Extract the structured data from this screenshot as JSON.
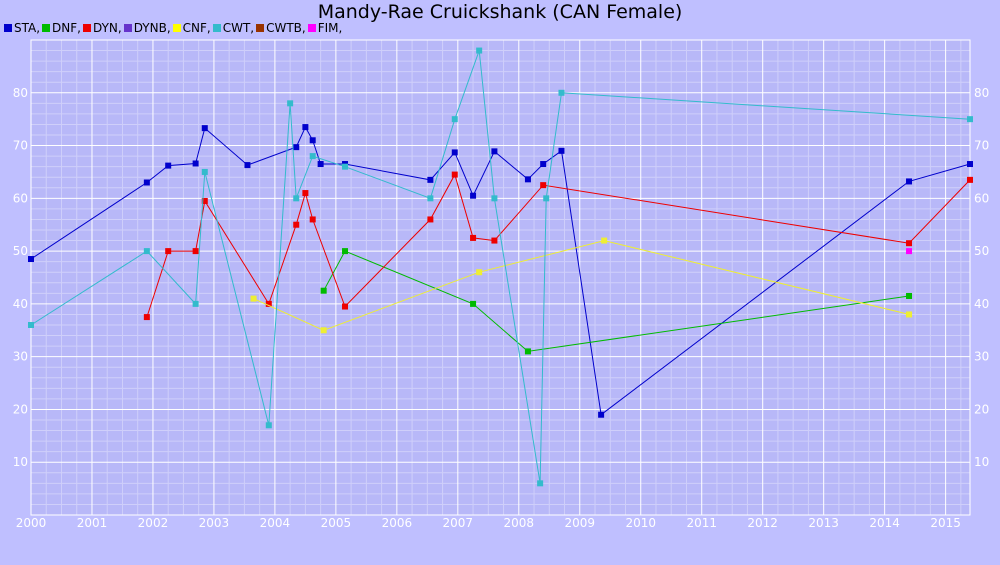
{
  "chart_data": {
    "type": "line",
    "title": "Mandy-Rae Cruickshank (CAN Female)",
    "xlim": [
      2000,
      2015.4
    ],
    "ylim": [
      0,
      90
    ],
    "x_ticks": [
      "2000",
      "2001",
      "2002",
      "2003",
      "2004",
      "2005",
      "2006",
      "2007",
      "2008",
      "2009",
      "2010",
      "2011",
      "2012",
      "2013",
      "2014",
      "2015"
    ],
    "y_ticks": [
      "10",
      "20",
      "30",
      "40",
      "50",
      "60",
      "70",
      "80"
    ],
    "grid": true,
    "legend_position": "top-left",
    "series": [
      {
        "name": "STA",
        "color": "#0000cc",
        "legend_color": "#0000cc",
        "points": [
          [
            2000.0,
            48.5
          ],
          [
            2001.9,
            63
          ],
          [
            2002.25,
            66.2
          ],
          [
            2002.7,
            66.6
          ],
          [
            2002.85,
            73.3
          ],
          [
            2003.55,
            66.3
          ],
          [
            2004.35,
            69.7
          ],
          [
            2004.5,
            73.5
          ],
          [
            2004.62,
            71
          ],
          [
            2004.75,
            66.5
          ],
          [
            2005.15,
            66.5
          ],
          [
            2006.55,
            63.5
          ],
          [
            2006.95,
            68.7
          ],
          [
            2007.25,
            60.5
          ],
          [
            2007.6,
            68.9
          ],
          [
            2008.15,
            63.6
          ],
          [
            2008.4,
            66.5
          ],
          [
            2008.7,
            69
          ],
          [
            2009.35,
            19
          ],
          [
            2014.4,
            63.2
          ],
          [
            2015.4,
            66.5
          ]
        ]
      },
      {
        "name": "DNF",
        "color": "#00bb00",
        "legend_color": "#00bb00",
        "points": [
          [
            2004.8,
            42.5
          ],
          [
            2005.15,
            50
          ],
          [
            2007.25,
            40
          ],
          [
            2008.15,
            31
          ],
          [
            2014.4,
            41.5
          ]
        ]
      },
      {
        "name": "DYN",
        "color": "#ee0000",
        "legend_color": "#ee0000",
        "points": [
          [
            2001.9,
            37.5
          ],
          [
            2002.25,
            50
          ],
          [
            2002.7,
            50
          ],
          [
            2002.85,
            59.5
          ],
          [
            2003.9,
            40
          ],
          [
            2004.35,
            55
          ],
          [
            2004.5,
            61
          ],
          [
            2004.62,
            56
          ],
          [
            2005.15,
            39.5
          ],
          [
            2006.55,
            56
          ],
          [
            2006.95,
            64.5
          ],
          [
            2007.25,
            52.5
          ],
          [
            2007.6,
            52
          ],
          [
            2008.4,
            62.5
          ],
          [
            2014.4,
            51.5
          ],
          [
            2015.4,
            63.5
          ]
        ]
      },
      {
        "name": "DYNB",
        "color": "#6633cc",
        "legend_color": "#6633cc",
        "points": []
      },
      {
        "name": "CNF",
        "color": "#eeee33",
        "legend_color": "#ffff00",
        "points": [
          [
            2003.65,
            41
          ],
          [
            2004.8,
            35
          ],
          [
            2007.35,
            46
          ],
          [
            2009.4,
            52
          ],
          [
            2014.4,
            38
          ]
        ]
      },
      {
        "name": "CWT",
        "color": "#33bbcc",
        "legend_color": "#33bbcc",
        "points": [
          [
            2000.0,
            36
          ],
          [
            2001.9,
            50
          ],
          [
            2002.7,
            40
          ],
          [
            2002.85,
            65
          ],
          [
            2003.9,
            17
          ],
          [
            2004.25,
            78
          ],
          [
            2004.35,
            60
          ],
          [
            2004.62,
            68
          ],
          [
            2005.15,
            66
          ],
          [
            2006.55,
            60
          ],
          [
            2006.95,
            75
          ],
          [
            2007.35,
            88
          ],
          [
            2007.6,
            60
          ],
          [
            2008.35,
            6
          ],
          [
            2008.45,
            60
          ],
          [
            2008.7,
            80
          ],
          [
            2015.4,
            75
          ]
        ]
      },
      {
        "name": "CWTB",
        "color": "#993300",
        "legend_color": "#993300",
        "points": []
      },
      {
        "name": "FIM",
        "color": "#ff00ff",
        "legend_color": "#ff00ff",
        "points": [
          [
            2014.4,
            50
          ]
        ]
      }
    ]
  }
}
